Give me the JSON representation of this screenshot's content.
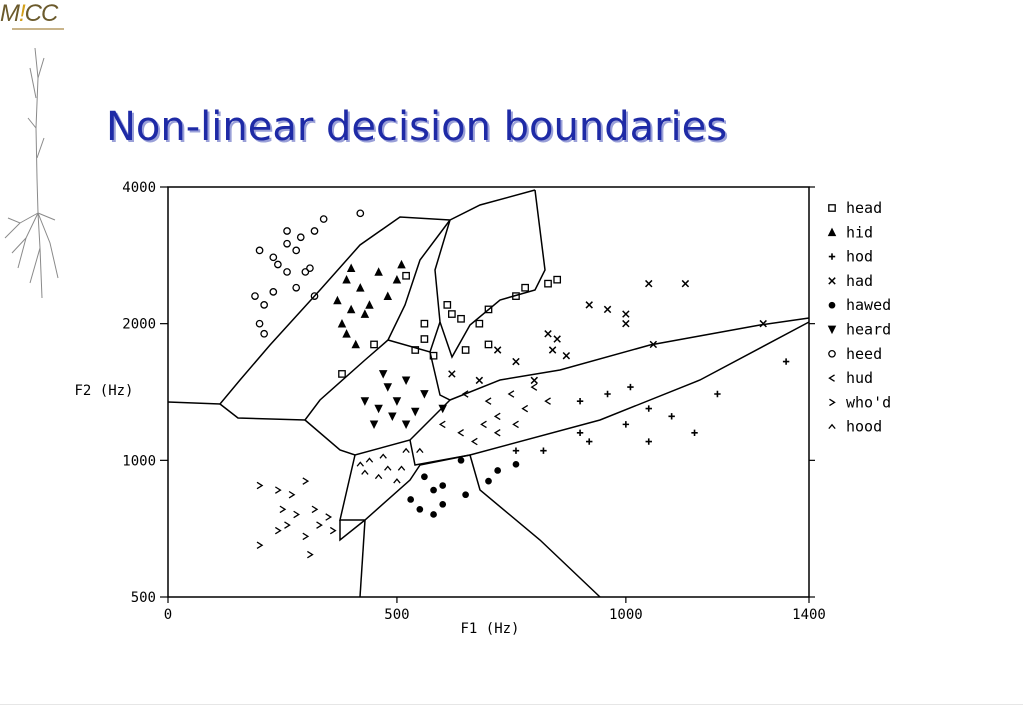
{
  "logo_text": "MICC",
  "slide": {
    "title": "Non-linear decision boundaries"
  },
  "chart_data": {
    "type": "scatter",
    "title": "",
    "xlabel": "F1 (Hz)",
    "ylabel": "F2 (Hz)",
    "xlim": [
      0,
      1400
    ],
    "ylim": [
      500,
      4000
    ],
    "x_ticks": [
      0,
      500,
      1000,
      1400
    ],
    "y_ticks": [
      500,
      1000,
      2000,
      4000
    ],
    "y_scale": "log",
    "grid": false,
    "legend_position": "right",
    "series": [
      {
        "name": "head",
        "marker": "square",
        "points": [
          [
            760,
            2300
          ],
          [
            780,
            2400
          ],
          [
            830,
            2450
          ],
          [
            850,
            2500
          ],
          [
            700,
            2150
          ],
          [
            520,
            2550
          ],
          [
            610,
            2200
          ],
          [
            620,
            2100
          ],
          [
            640,
            2050
          ],
          [
            580,
            1700
          ],
          [
            650,
            1750
          ],
          [
            700,
            1800
          ],
          [
            560,
            1850
          ],
          [
            450,
            1800
          ],
          [
            380,
            1550
          ],
          [
            560,
            2000
          ],
          [
            680,
            2000
          ],
          [
            540,
            1750
          ]
        ]
      },
      {
        "name": "hid",
        "marker": "triangle",
        "points": [
          [
            390,
            2500
          ],
          [
            420,
            2400
          ],
          [
            460,
            2600
          ],
          [
            510,
            2700
          ],
          [
            400,
            2150
          ],
          [
            380,
            2000
          ],
          [
            430,
            2100
          ],
          [
            370,
            2250
          ],
          [
            390,
            1900
          ],
          [
            410,
            1800
          ],
          [
            480,
            2300
          ],
          [
            500,
            2500
          ],
          [
            400,
            2650
          ],
          [
            440,
            2200
          ]
        ]
      },
      {
        "name": "hod",
        "marker": "plus",
        "points": [
          [
            900,
            1350
          ],
          [
            960,
            1400
          ],
          [
            1050,
            1300
          ],
          [
            1100,
            1250
          ],
          [
            1000,
            1200
          ],
          [
            920,
            1100
          ],
          [
            1050,
            1100
          ],
          [
            1200,
            1400
          ],
          [
            1350,
            1650
          ],
          [
            1150,
            1150
          ],
          [
            820,
            1050
          ],
          [
            900,
            1150
          ],
          [
            760,
            1050
          ],
          [
            1010,
            1450
          ]
        ]
      },
      {
        "name": "had",
        "marker": "x",
        "points": [
          [
            920,
            2200
          ],
          [
            960,
            2150
          ],
          [
            1050,
            2450
          ],
          [
            1130,
            2450
          ],
          [
            1000,
            2100
          ],
          [
            1000,
            2000
          ],
          [
            830,
            1900
          ],
          [
            850,
            1850
          ],
          [
            840,
            1750
          ],
          [
            870,
            1700
          ],
          [
            1060,
            1800
          ],
          [
            1300,
            2000
          ],
          [
            720,
            1750
          ],
          [
            680,
            1500
          ],
          [
            620,
            1550
          ],
          [
            760,
            1650
          ],
          [
            800,
            1500
          ]
        ]
      },
      {
        "name": "hawed",
        "marker": "filled-circle",
        "points": [
          [
            560,
            920
          ],
          [
            580,
            860
          ],
          [
            600,
            800
          ],
          [
            550,
            780
          ],
          [
            650,
            840
          ],
          [
            700,
            900
          ],
          [
            720,
            950
          ],
          [
            760,
            980
          ],
          [
            640,
            1000
          ],
          [
            600,
            880
          ],
          [
            530,
            820
          ],
          [
            580,
            760
          ]
        ]
      },
      {
        "name": "heard",
        "marker": "down-triangle",
        "points": [
          [
            480,
            1450
          ],
          [
            520,
            1500
          ],
          [
            500,
            1350
          ],
          [
            460,
            1300
          ],
          [
            540,
            1280
          ],
          [
            560,
            1400
          ],
          [
            490,
            1250
          ],
          [
            520,
            1200
          ],
          [
            470,
            1550
          ],
          [
            600,
            1300
          ],
          [
            430,
            1350
          ],
          [
            450,
            1200
          ]
        ]
      },
      {
        "name": "heed",
        "marker": "circle",
        "points": [
          [
            200,
            2900
          ],
          [
            230,
            2800
          ],
          [
            260,
            3000
          ],
          [
            290,
            3100
          ],
          [
            320,
            3200
          ],
          [
            340,
            3400
          ],
          [
            260,
            2600
          ],
          [
            230,
            2350
          ],
          [
            210,
            2200
          ],
          [
            190,
            2300
          ],
          [
            280,
            2400
          ],
          [
            300,
            2600
          ],
          [
            200,
            2000
          ],
          [
            210,
            1900
          ],
          [
            420,
            3500
          ],
          [
            260,
            3200
          ],
          [
            240,
            2700
          ],
          [
            280,
            2900
          ],
          [
            320,
            2300
          ],
          [
            310,
            2650
          ]
        ]
      },
      {
        "name": "hud",
        "marker": "lt",
        "points": [
          [
            650,
            1400
          ],
          [
            700,
            1350
          ],
          [
            750,
            1400
          ],
          [
            780,
            1300
          ],
          [
            720,
            1250
          ],
          [
            690,
            1200
          ],
          [
            640,
            1150
          ],
          [
            670,
            1100
          ],
          [
            800,
            1450
          ],
          [
            830,
            1350
          ],
          [
            720,
            1150
          ],
          [
            600,
            1200
          ],
          [
            760,
            1200
          ]
        ]
      },
      {
        "name": "who'd",
        "marker": "gt",
        "points": [
          [
            200,
            880
          ],
          [
            240,
            860
          ],
          [
            270,
            840
          ],
          [
            300,
            900
          ],
          [
            320,
            780
          ],
          [
            260,
            720
          ],
          [
            240,
            700
          ],
          [
            300,
            680
          ],
          [
            330,
            720
          ],
          [
            200,
            650
          ],
          [
            310,
            620
          ],
          [
            350,
            750
          ],
          [
            280,
            760
          ],
          [
            250,
            780
          ],
          [
            360,
            700
          ]
        ]
      },
      {
        "name": "hood",
        "marker": "caret",
        "points": [
          [
            440,
            1000
          ],
          [
            480,
            960
          ],
          [
            520,
            1050
          ],
          [
            460,
            920
          ],
          [
            500,
            900
          ],
          [
            430,
            940
          ],
          [
            470,
            1020
          ],
          [
            550,
            1050
          ],
          [
            420,
            980
          ],
          [
            510,
            960
          ]
        ]
      }
    ]
  }
}
